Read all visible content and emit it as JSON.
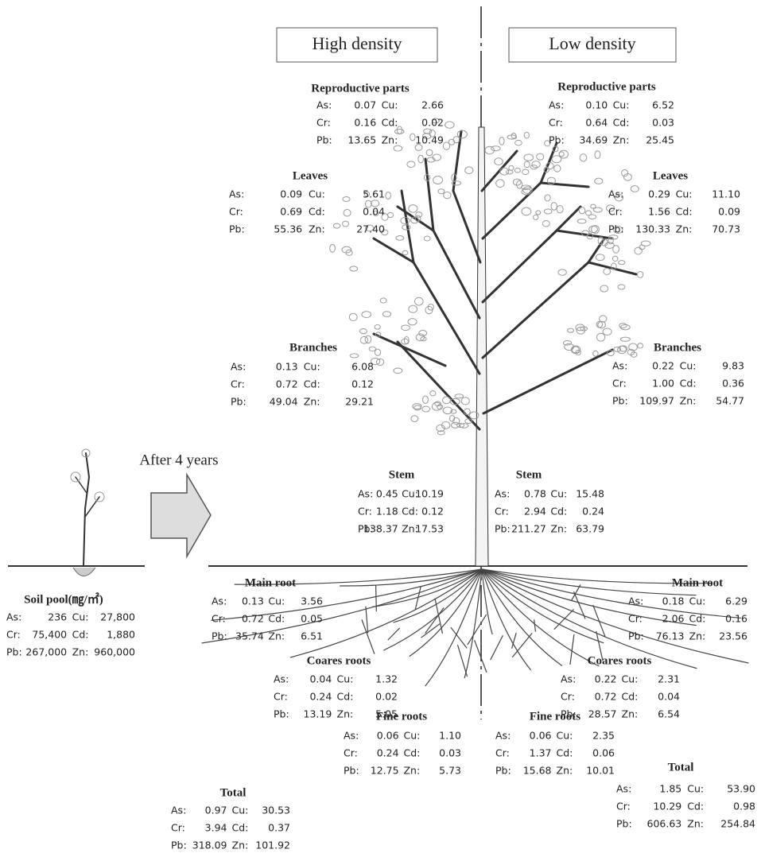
{
  "headers": {
    "high": "High density",
    "low": "Low density"
  },
  "arrow_label": "After 4 years",
  "soil_pool": {
    "title": "Soil pool(㎎/㎡)",
    "rows": [
      [
        "As:",
        "236",
        "Cu:",
        "27,800"
      ],
      [
        "Cr:",
        "75,400",
        "Cd:",
        "1,880"
      ],
      [
        "Pb:",
        "267,000",
        "Zn:",
        "960,000"
      ]
    ]
  },
  "high_density": [
    {
      "title": "Reproductive parts",
      "rows": [
        [
          "As:",
          "0.07",
          "Cu:",
          "2.66"
        ],
        [
          "Cr:",
          "0.16",
          "Cd:",
          "0.02"
        ],
        [
          "Pb:",
          "13.65",
          "Zn:",
          "10.49"
        ]
      ]
    },
    {
      "title": "Leaves",
      "rows": [
        [
          "As:",
          "0.09",
          "Cu:",
          "5.61"
        ],
        [
          "Cr:",
          "0.69",
          "Cd:",
          "0.04"
        ],
        [
          "Pb:",
          "55.36",
          "Zn:",
          "27.40"
        ]
      ]
    },
    {
      "title": "Branches",
      "rows": [
        [
          "As:",
          "0.13",
          "Cu:",
          "6.08"
        ],
        [
          "Cr:",
          "0.72",
          "Cd:",
          "0.12"
        ],
        [
          "Pb:",
          "49.04",
          "Zn:",
          "29.21"
        ]
      ]
    },
    {
      "title": "Stem",
      "rows": [
        [
          "As:",
          "0.45",
          "Cu:",
          "10.19"
        ],
        [
          "Cr:",
          "1.18",
          "Cd:",
          "0.12"
        ],
        [
          "Pb:",
          "138.37",
          "Zn:",
          "17.53"
        ]
      ]
    },
    {
      "title": "Main root",
      "rows": [
        [
          "As:",
          "0.13",
          "Cu:",
          "3.56"
        ],
        [
          "Cr:",
          "0.72",
          "Cd:",
          "0.05"
        ],
        [
          "Pb:",
          "35.74",
          "Zn:",
          "6.51"
        ]
      ]
    },
    {
      "title": "Coares roots",
      "rows": [
        [
          "As:",
          "0.04",
          "Cu:",
          "1.32"
        ],
        [
          "Cr:",
          "0.24",
          "Cd:",
          "0.02"
        ],
        [
          "Pb:",
          "13.19",
          "Zn:",
          "5.05"
        ]
      ]
    },
    {
      "title": "Fine roots",
      "rows": [
        [
          "As:",
          "0.06",
          "Cu:",
          "1.10"
        ],
        [
          "Cr:",
          "0.24",
          "Cd:",
          "0.03"
        ],
        [
          "Pb:",
          "12.75",
          "Zn:",
          "5.73"
        ]
      ]
    },
    {
      "title": "Total",
      "rows": [
        [
          "As:",
          "0.97",
          "Cu:",
          "30.53"
        ],
        [
          "Cr:",
          "3.94",
          "Cd:",
          "0.37"
        ],
        [
          "Pb:",
          "318.09",
          "Zn:",
          "101.92"
        ]
      ]
    }
  ],
  "low_density": [
    {
      "title": "Reproductive parts",
      "rows": [
        [
          "As:",
          "0.10",
          "Cu:",
          "6.52"
        ],
        [
          "Cr:",
          "0.64",
          "Cd:",
          "0.03"
        ],
        [
          "Pb:",
          "34.69",
          "Zn:",
          "25.45"
        ]
      ]
    },
    {
      "title": "Leaves",
      "rows": [
        [
          "As:",
          "0.29",
          "Cu:",
          "11.10"
        ],
        [
          "Cr:",
          "1.56",
          "Cd:",
          "0.09"
        ],
        [
          "Pb:",
          "130.33",
          "Zn:",
          "70.73"
        ]
      ]
    },
    {
      "title": "Branches",
      "rows": [
        [
          "As:",
          "0.22",
          "Cu:",
          "9.83"
        ],
        [
          "Cr:",
          "1.00",
          "Cd:",
          "0.36"
        ],
        [
          "Pb:",
          "109.97",
          "Zn:",
          "54.77"
        ]
      ]
    },
    {
      "title": "Stem",
      "rows": [
        [
          "As:",
          "0.78",
          "Cu:",
          "15.48"
        ],
        [
          "Cr:",
          "2.94",
          "Cd:",
          "0.24"
        ],
        [
          "Pb:",
          "211.27",
          "Zn:",
          "63.79"
        ]
      ]
    },
    {
      "title": "Main root",
      "rows": [
        [
          "As:",
          "0.18",
          "Cu:",
          "6.29"
        ],
        [
          "Cr:",
          "2.06",
          "Cd:",
          "0.16"
        ],
        [
          "Pb:",
          "76.13",
          "Zn:",
          "23.56"
        ]
      ]
    },
    {
      "title": "Coares roots",
      "rows": [
        [
          "As:",
          "0.22",
          "Cu:",
          "2.31"
        ],
        [
          "Cr:",
          "0.72",
          "Cd:",
          "0.04"
        ],
        [
          "Pb:",
          "28.57",
          "Zn:",
          "6.54"
        ]
      ]
    },
    {
      "title": "Fine roots",
      "rows": [
        [
          "As:",
          "0.06",
          "Cu:",
          "2.35"
        ],
        [
          "Cr:",
          "1.37",
          "Cd:",
          "0.06"
        ],
        [
          "Pb:",
          "15.68",
          "Zn:",
          "10.01"
        ]
      ]
    },
    {
      "title": "Total",
      "rows": [
        [
          "As:",
          "1.85",
          "Cu:",
          "53.90"
        ],
        [
          "Cr:",
          "10.29",
          "Cd:",
          "0.98"
        ],
        [
          "Pb:",
          "606.63",
          "Zn:",
          "254.84"
        ]
      ]
    }
  ]
}
